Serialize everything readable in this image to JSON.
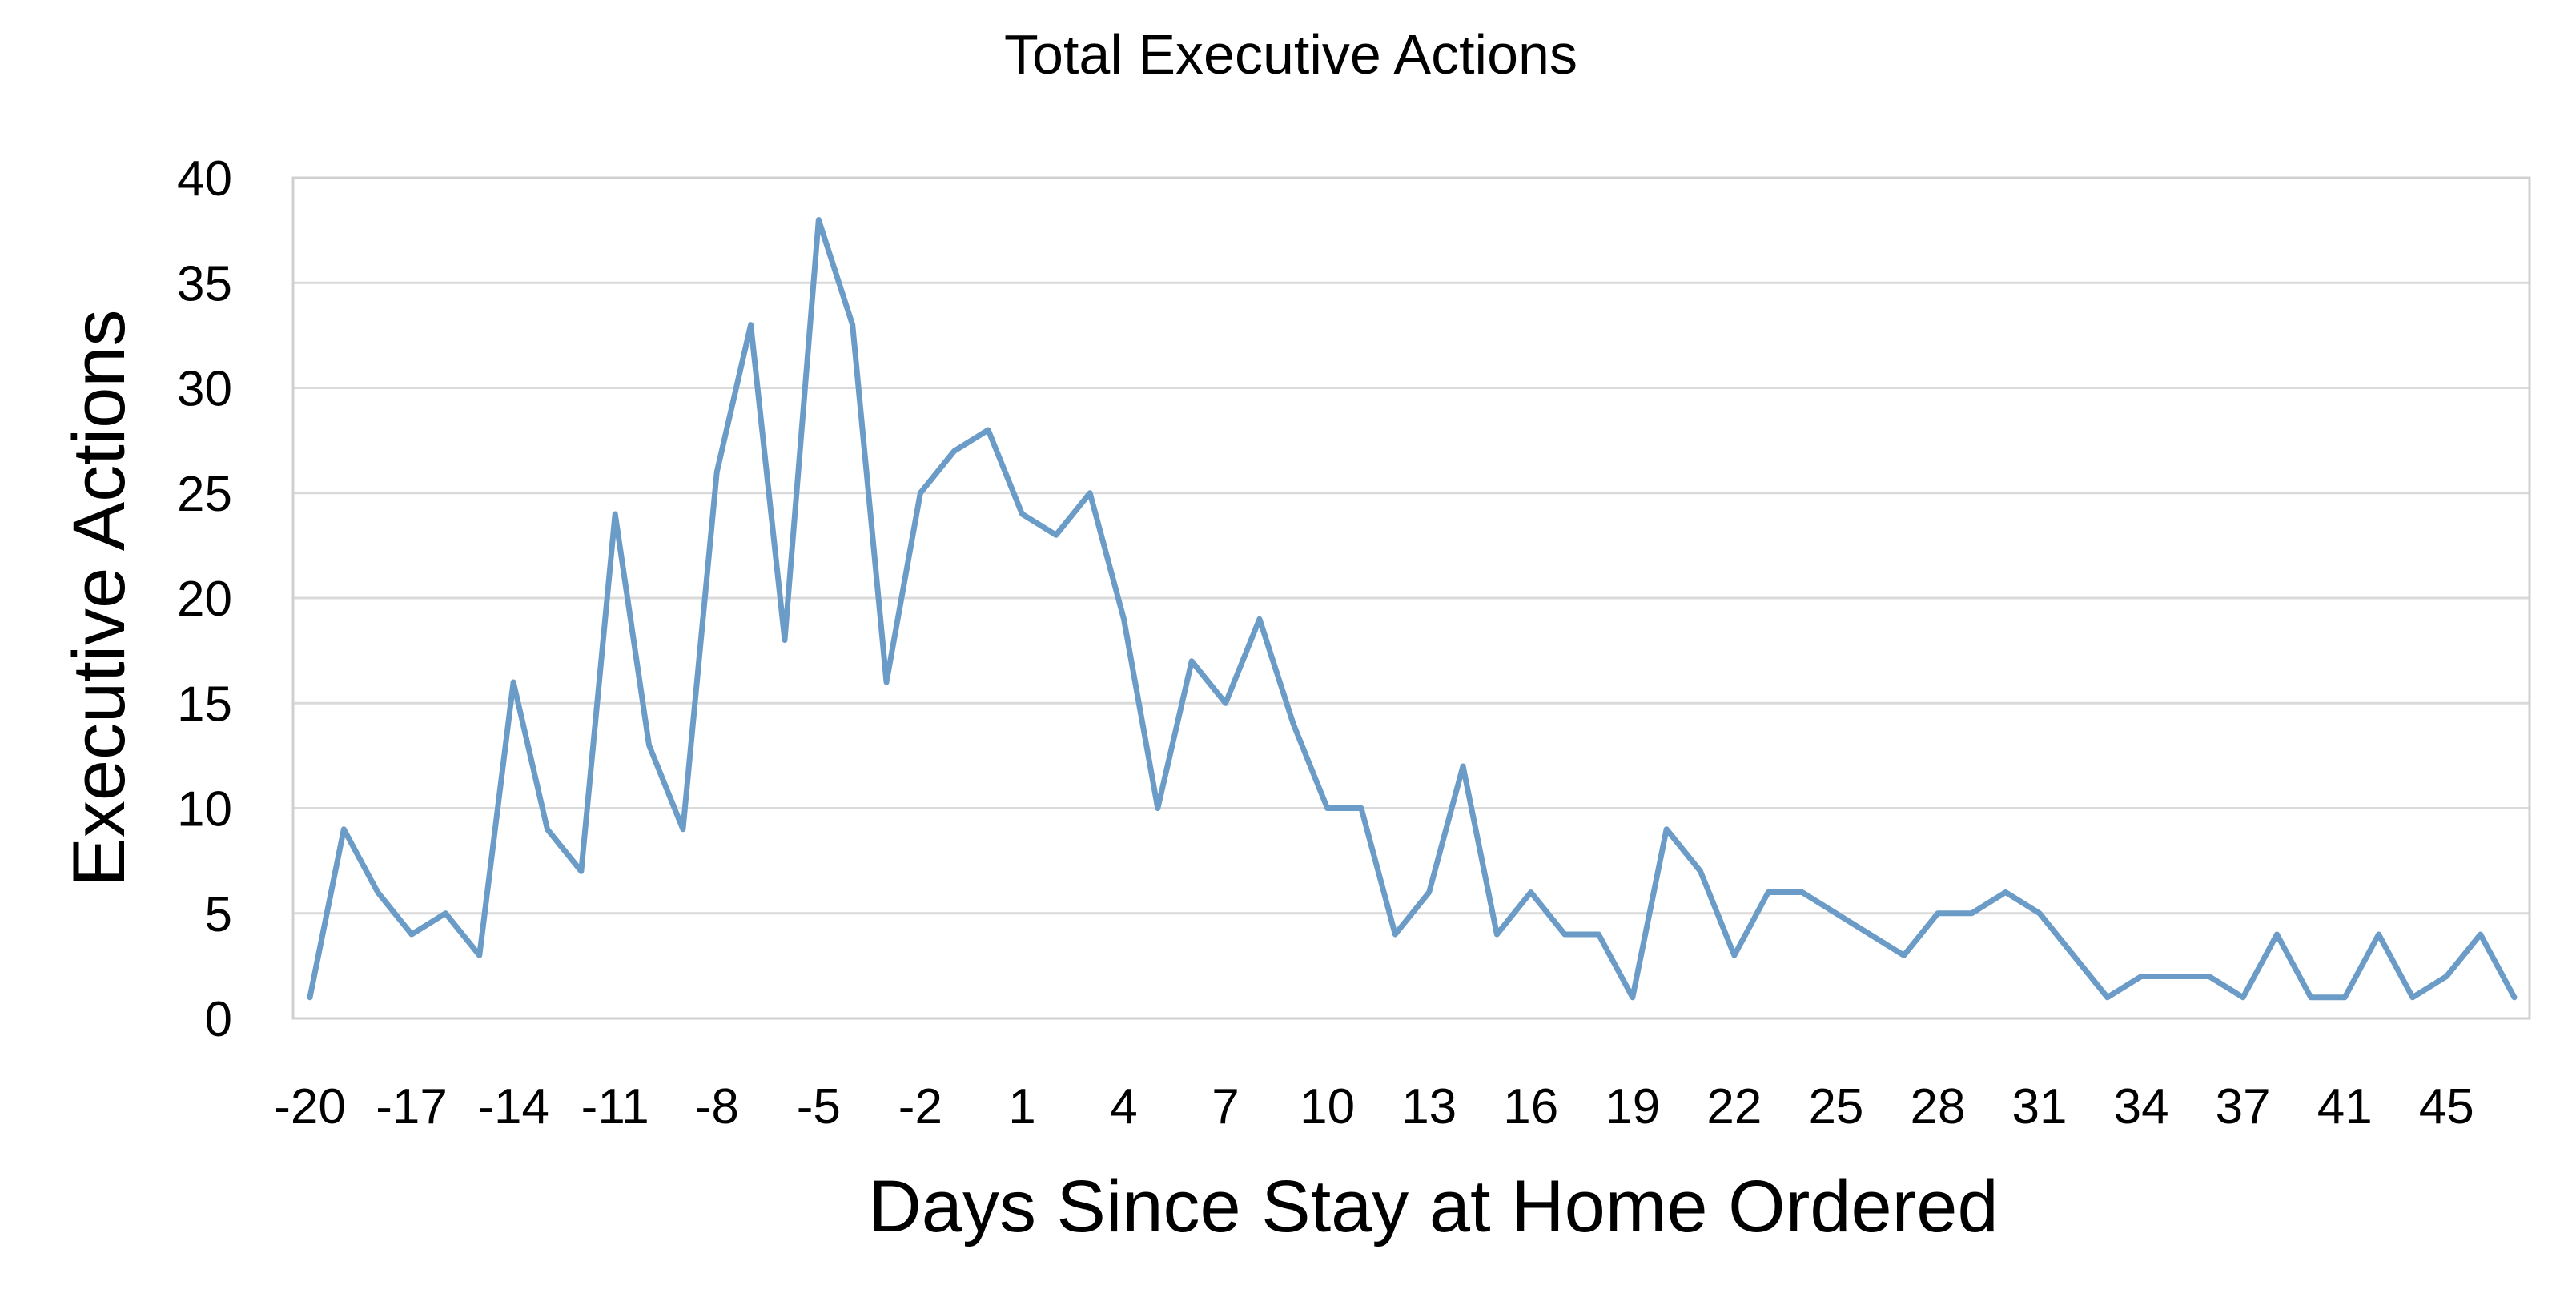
{
  "chart_data": {
    "type": "line",
    "title": "Total Executive Actions",
    "x_label": "Days Since Stay at Home Ordered",
    "y_label": "Executive Actions",
    "categories": [
      -20,
      null,
      null,
      -17,
      null,
      null,
      -14,
      null,
      null,
      -11,
      null,
      null,
      -8,
      null,
      null,
      -5,
      null,
      null,
      -2,
      null,
      null,
      1,
      null,
      null,
      4,
      null,
      null,
      7,
      null,
      null,
      10,
      null,
      null,
      13,
      null,
      null,
      16,
      null,
      null,
      19,
      null,
      null,
      22,
      null,
      null,
      25,
      null,
      null,
      28,
      null,
      null,
      31,
      null,
      null,
      34,
      null,
      null,
      37,
      null,
      null,
      41,
      null,
      null,
      45,
      null,
      null
    ],
    "series": [
      {
        "name": "Total Executive Actions",
        "color": "#6b9bc7",
        "values": [
          1,
          9,
          6,
          4,
          5,
          3,
          16,
          9,
          7,
          24,
          13,
          9,
          26,
          33,
          18,
          38,
          33,
          16,
          25,
          27,
          28,
          24,
          23,
          25,
          19,
          10,
          17,
          15,
          19,
          14,
          10,
          10,
          4,
          6,
          12,
          4,
          6,
          4,
          4,
          1,
          9,
          7,
          3,
          6,
          6,
          5,
          4,
          3,
          5,
          5,
          6,
          5,
          3,
          1,
          2,
          2,
          2,
          1,
          4,
          1,
          1,
          4,
          1,
          2,
          4,
          1
        ]
      }
    ],
    "ylim": [
      0,
      40
    ],
    "yticks": [
      0,
      5,
      10,
      15,
      20,
      25,
      30,
      35,
      40
    ],
    "grid": true
  }
}
